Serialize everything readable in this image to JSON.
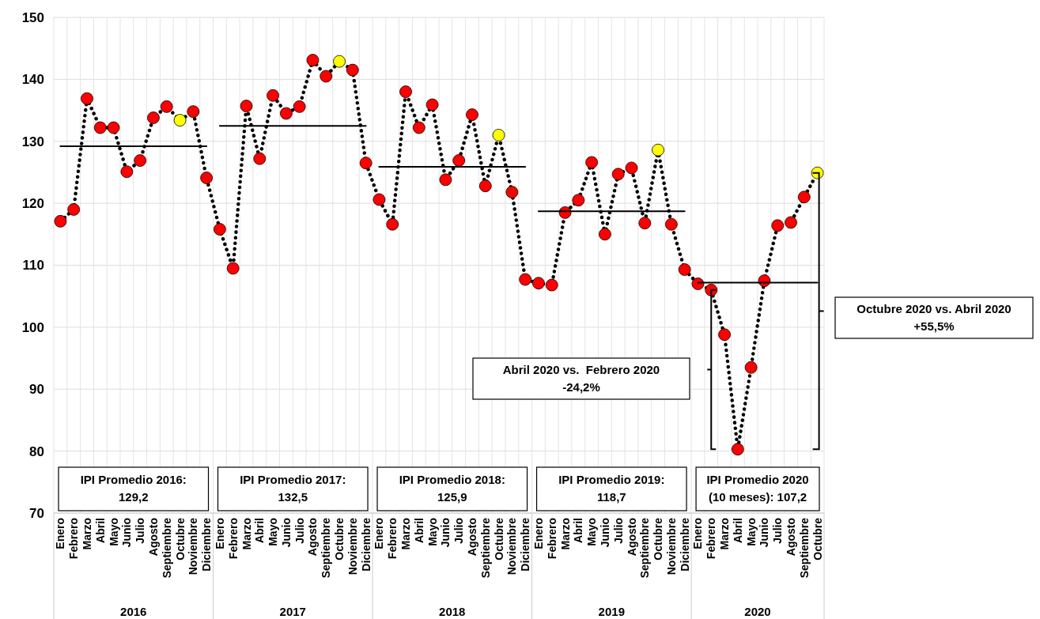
{
  "chart_data": {
    "type": "line",
    "categories": [
      "Enero",
      "Febrero",
      "Marzo",
      "Abril",
      "Mayo",
      "Junio",
      "Julio",
      "Agosto",
      "Septiembre",
      "Octubre",
      "Noviembre",
      "Diciembre",
      "Enero",
      "Febrero",
      "Marzo",
      "Abril",
      "Mayo",
      "Junio",
      "Julio",
      "Agosto",
      "Septiembre",
      "Octubre",
      "Noviembre",
      "Diciembre",
      "Enero",
      "Febrero",
      "Marzo",
      "Abril",
      "Mayo",
      "Junio",
      "Julio",
      "Agosto",
      "Septiembre",
      "Octubre",
      "Noviembre",
      "Diciembre",
      "Enero",
      "Febrero",
      "Marzo",
      "Abril",
      "Mayo",
      "Junio",
      "Julio",
      "Agosto",
      "Septiembre",
      "Octubre",
      "Noviembre",
      "Diciembre",
      "Enero",
      "Febrero",
      "Marzo",
      "Abril",
      "Mayo",
      "Junio",
      "Julio",
      "Agosto",
      "Septiembre",
      "Octubre"
    ],
    "series": [
      {
        "color": "#000000",
        "marker": "circle",
        "line_style": "dotted",
        "colors": [
          "#ff0000",
          "#ff0000",
          "#ff0000",
          "#ff0000",
          "#ff0000",
          "#ff0000",
          "#ff0000",
          "#ff0000",
          "#ff0000",
          "#ffff00",
          "#ff0000",
          "#ff0000",
          "#ff0000",
          "#ff0000",
          "#ff0000",
          "#ff0000",
          "#ff0000",
          "#ff0000",
          "#ff0000",
          "#ff0000",
          "#ff0000",
          "#ffff00",
          "#ff0000",
          "#ff0000",
          "#ff0000",
          "#ff0000",
          "#ff0000",
          "#ff0000",
          "#ff0000",
          "#ff0000",
          "#ff0000",
          "#ff0000",
          "#ff0000",
          "#ffff00",
          "#ff0000",
          "#ff0000",
          "#ff0000",
          "#ff0000",
          "#ff0000",
          "#ff0000",
          "#ff0000",
          "#ff0000",
          "#ff0000",
          "#ff0000",
          "#ff0000",
          "#ffff00",
          "#ff0000",
          "#ff0000",
          "#ff0000",
          "#ff0000",
          "#ff0000",
          "#ff0000",
          "#ff0000",
          "#ff0000",
          "#ff0000",
          "#ff0000",
          "#ff0000",
          "#ffff00"
        ],
        "values": [
          117.1,
          119.0,
          136.9,
          132.2,
          132.2,
          125.1,
          126.9,
          133.8,
          135.6,
          133.4,
          134.8,
          124.1,
          115.8,
          109.5,
          135.7,
          127.2,
          137.4,
          134.5,
          135.6,
          143.1,
          140.5,
          142.9,
          141.5,
          126.5,
          120.6,
          116.6,
          138.0,
          132.2,
          135.9,
          123.8,
          126.9,
          134.3,
          122.8,
          131.0,
          121.8,
          107.7,
          107.1,
          106.8,
          118.5,
          120.5,
          126.6,
          115.0,
          124.7,
          125.7,
          116.8,
          128.6,
          116.6,
          109.3,
          107.0,
          106.0,
          98.8,
          80.3,
          93.5,
          107.5,
          116.4,
          116.9,
          121.0,
          124.9
        ]
      },
      {
        "color": "#000000",
        "marker": "none",
        "line_style": "solid",
        "values": [
          129.2,
          129.2,
          129.2,
          129.2,
          129.2,
          129.2,
          129.2,
          129.2,
          129.2,
          129.2,
          129.2,
          129.2,
          null,
          null,
          null,
          null,
          null,
          null,
          null,
          null,
          null,
          null,
          null,
          null,
          null,
          null,
          null,
          null,
          null,
          null,
          null,
          null,
          null,
          null,
          null,
          null,
          null,
          null,
          null,
          null,
          null,
          null,
          null,
          null,
          null,
          null,
          null,
          null,
          null,
          null,
          null,
          null,
          null,
          null,
          null,
          null,
          null,
          null
        ]
      },
      {
        "color": "#000000",
        "marker": "none",
        "line_style": "solid",
        "values": [
          null,
          null,
          null,
          null,
          null,
          null,
          null,
          null,
          null,
          null,
          null,
          null,
          132.5,
          132.5,
          132.5,
          132.5,
          132.5,
          132.5,
          132.5,
          132.5,
          132.5,
          132.5,
          132.5,
          132.5,
          null,
          null,
          null,
          null,
          null,
          null,
          null,
          null,
          null,
          null,
          null,
          null,
          null,
          null,
          null,
          null,
          null,
          null,
          null,
          null,
          null,
          null,
          null,
          null,
          null,
          null,
          null,
          null,
          null,
          null,
          null,
          null,
          null,
          null
        ]
      },
      {
        "color": "#000000",
        "marker": "none",
        "line_style": "solid",
        "values": [
          null,
          null,
          null,
          null,
          null,
          null,
          null,
          null,
          null,
          null,
          null,
          null,
          null,
          null,
          null,
          null,
          null,
          null,
          null,
          null,
          null,
          null,
          null,
          null,
          125.9,
          125.9,
          125.9,
          125.9,
          125.9,
          125.9,
          125.9,
          125.9,
          125.9,
          125.9,
          125.9,
          125.9,
          null,
          null,
          null,
          null,
          null,
          null,
          null,
          null,
          null,
          null,
          null,
          null,
          null,
          null,
          null,
          null,
          null,
          null,
          null,
          null,
          null,
          null
        ]
      },
      {
        "color": "#000000",
        "marker": "none",
        "line_style": "solid",
        "values": [
          null,
          null,
          null,
          null,
          null,
          null,
          null,
          null,
          null,
          null,
          null,
          null,
          null,
          null,
          null,
          null,
          null,
          null,
          null,
          null,
          null,
          null,
          null,
          null,
          null,
          null,
          null,
          null,
          null,
          null,
          null,
          null,
          null,
          null,
          null,
          null,
          118.7,
          118.7,
          118.7,
          118.7,
          118.7,
          118.7,
          118.7,
          118.7,
          118.7,
          118.7,
          118.7,
          118.7,
          null,
          null,
          null,
          null,
          null,
          null,
          null,
          null,
          null,
          null
        ]
      },
      {
        "color": "#000000",
        "marker": "none",
        "line_style": "solid",
        "values": [
          null,
          null,
          null,
          null,
          null,
          null,
          null,
          null,
          null,
          null,
          null,
          null,
          null,
          null,
          null,
          null,
          null,
          null,
          null,
          null,
          null,
          null,
          null,
          null,
          null,
          null,
          null,
          null,
          null,
          null,
          null,
          null,
          null,
          null,
          null,
          null,
          null,
          null,
          null,
          null,
          null,
          null,
          null,
          null,
          null,
          null,
          null,
          null,
          107.2,
          107.2,
          107.2,
          107.2,
          107.2,
          107.2,
          107.2,
          107.2,
          107.2,
          107.2
        ]
      }
    ],
    "ylim": [
      70,
      150
    ],
    "yticks": [
      70,
      80,
      90,
      100,
      110,
      120,
      130,
      140,
      150
    ],
    "grid": true,
    "annotations": [
      "2016",
      "2017",
      "2018",
      "2019",
      "2020",
      "IPI Promedio 2016:\n129,2",
      "IPI Promedio 2017:\n132,5",
      "IPI Promedio 2018:\n125,9",
      "IPI Promedio 2019:\n118,7",
      "IPI Promedio 2020\n(10 meses): 107,2",
      "Abril 2020 vs.  Febrero 2020\n-24,2%",
      "Octubre 2020 vs. Abril 2020\n+55,5%"
    ]
  }
}
